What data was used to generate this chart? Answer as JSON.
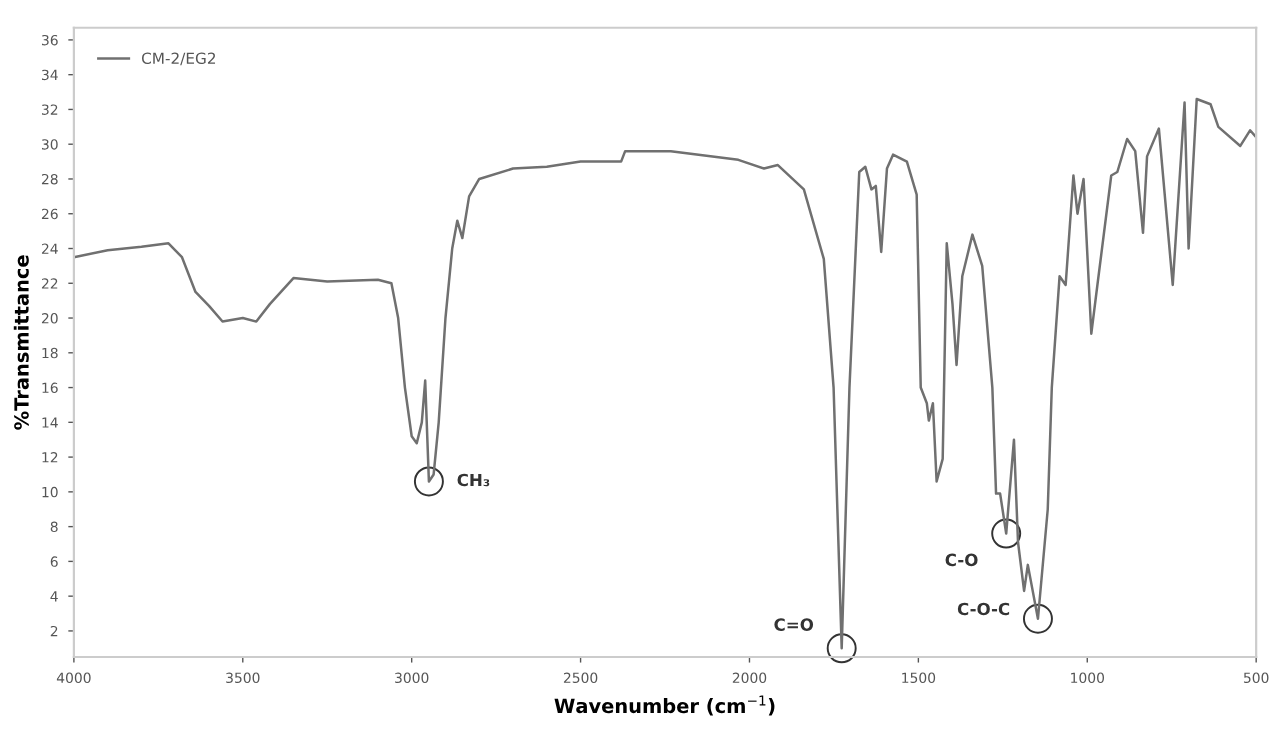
{
  "chart_data": {
    "type": "line",
    "xlabel": "Wavenumber (cm$^{−1}$)",
    "ylabel": "%Transmittance",
    "xlim": [
      4000,
      500
    ],
    "ylim": [
      0.5,
      36.7
    ],
    "xticks": [
      4000,
      3500,
      3000,
      2500,
      2000,
      1500,
      1000,
      500
    ],
    "yticks": [
      2,
      4,
      6,
      8,
      10,
      12,
      14,
      16,
      18,
      20,
      22,
      24,
      26,
      28,
      30,
      32,
      34,
      36
    ],
    "grid": false,
    "legend": "top left",
    "marker": "none",
    "line_style": "solid",
    "series": [
      {
        "name": "CM-2/EG2",
        "color": "#707070",
        "x": [
          4000,
          3900,
          3800,
          3720,
          3680,
          3640,
          3600,
          3560,
          3500,
          3460,
          3420,
          3350,
          3250,
          3100,
          3060,
          3040,
          3020,
          3000,
          2985,
          2970,
          2960,
          2949,
          2935,
          2920,
          2900,
          2880,
          2865,
          2850,
          2830,
          2800,
          2700,
          2600,
          2500,
          2380,
          2368,
          2233,
          2033,
          1957,
          1916,
          1839,
          1780,
          1751,
          1727,
          1704,
          1675,
          1657,
          1639,
          1626,
          1610,
          1593,
          1575,
          1534,
          1505,
          1493,
          1475,
          1469,
          1457,
          1446,
          1428,
          1416,
          1399,
          1387,
          1370,
          1340,
          1311,
          1281,
          1270,
          1258,
          1240,
          1217,
          1205,
          1187,
          1176,
          1146,
          1117,
          1105,
          1082,
          1064,
          1041,
          1029,
          1011,
          988,
          970,
          929,
          911,
          882,
          858,
          835,
          823,
          788,
          747,
          712,
          700,
          676,
          635,
          612,
          547,
          518,
          500
        ],
        "values": [
          23.5,
          23.9,
          24.1,
          24.3,
          23.5,
          21.5,
          20.7,
          19.8,
          20.0,
          19.8,
          20.8,
          22.3,
          22.1,
          22.2,
          22.0,
          20,
          16,
          13.2,
          12.8,
          14,
          16.4,
          10.6,
          11.0,
          14,
          20,
          24,
          25.6,
          24.6,
          27,
          28,
          28.6,
          28.7,
          29.0,
          29.0,
          29.6,
          29.6,
          29.1,
          28.6,
          28.8,
          27.4,
          23.4,
          16,
          1.0,
          16,
          28.4,
          28.7,
          27.4,
          27.6,
          23.8,
          28.6,
          29.4,
          29.0,
          27.1,
          16,
          15.1,
          14.1,
          15.1,
          10.6,
          11.9,
          24.3,
          20.8,
          17.3,
          22.4,
          24.8,
          23.0,
          16,
          9.9,
          9.9,
          7.6,
          13.0,
          7.1,
          4.3,
          5.8,
          2.7,
          9.0,
          16,
          22.4,
          21.9,
          28.2,
          26.0,
          28.0,
          19.1,
          21.9,
          28.2,
          28.4,
          30.3,
          29.6,
          24.9,
          29.3,
          30.9,
          21.9,
          32.4,
          24.0,
          32.6,
          32.3,
          31.0,
          29.9,
          30.8,
          30.4
        ]
      }
    ],
    "annotations": [
      {
        "text": "CH₃",
        "x": 2949,
        "y": 10.6
      },
      {
        "text": "C=O",
        "x": 1727,
        "y": 1.0
      },
      {
        "text": "C-O",
        "x": 1240,
        "y": 7.6
      },
      {
        "text": "C-O-C",
        "x": 1146,
        "y": 2.7
      }
    ]
  }
}
